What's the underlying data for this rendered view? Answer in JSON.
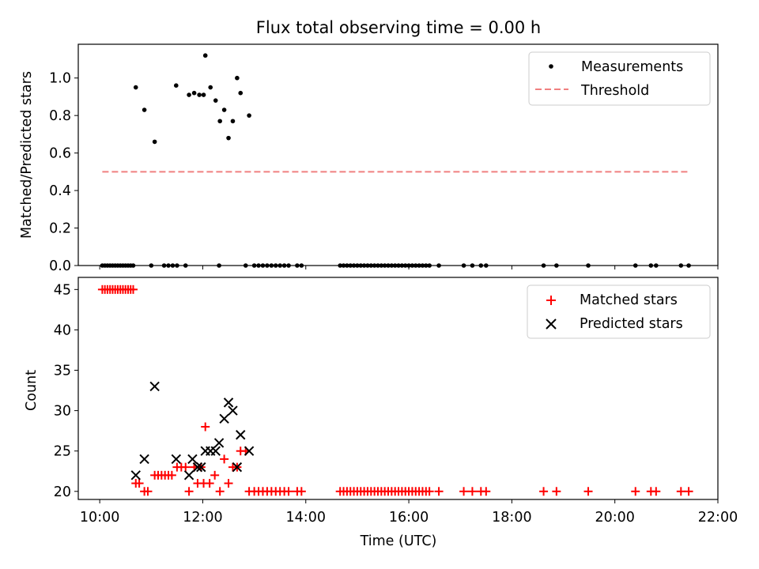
{
  "chart_data": [
    {
      "type": "scatter",
      "title": "Flux total observing time = 0.00 h",
      "xlabel": "",
      "ylabel": "Matched/Predicted stars",
      "xlim": [
        "09:35",
        "22:00"
      ],
      "ylim": [
        0,
        1.18
      ],
      "yticks": [
        "0.0",
        "0.2",
        "0.4",
        "0.6",
        "0.8",
        "1.0"
      ],
      "legend_position": "top-right",
      "series": [
        {
          "name": "Measurements",
          "marker": "dot",
          "color": "#000000",
          "points": [
            [
              "10:03",
              0
            ],
            [
              "10:06",
              0
            ],
            [
              "10:09",
              0
            ],
            [
              "10:12",
              0
            ],
            [
              "10:15",
              0
            ],
            [
              "10:18",
              0
            ],
            [
              "10:21",
              0
            ],
            [
              "10:24",
              0
            ],
            [
              "10:27",
              0
            ],
            [
              "10:30",
              0
            ],
            [
              "10:33",
              0
            ],
            [
              "10:36",
              0
            ],
            [
              "10:39",
              0
            ],
            [
              "10:42",
              0.95
            ],
            [
              "10:52",
              0.83
            ],
            [
              "11:00",
              0
            ],
            [
              "11:04",
              0.66
            ],
            [
              "11:15",
              0
            ],
            [
              "11:20",
              0
            ],
            [
              "11:25",
              0
            ],
            [
              "11:30",
              0
            ],
            [
              "11:29",
              0.96
            ],
            [
              "11:40",
              0
            ],
            [
              "11:44",
              0.91
            ],
            [
              "11:50",
              0.92
            ],
            [
              "11:56",
              0.91
            ],
            [
              "12:01",
              0.91
            ],
            [
              "12:03",
              1.12
            ],
            [
              "12:09",
              0.95
            ],
            [
              "12:15",
              0.88
            ],
            [
              "12:19",
              0
            ],
            [
              "12:20",
              0.77
            ],
            [
              "12:25",
              0.83
            ],
            [
              "12:30",
              0.68
            ],
            [
              "12:35",
              0.77
            ],
            [
              "12:40",
              1.0
            ],
            [
              "12:44",
              0.92
            ],
            [
              "12:54",
              0.8
            ],
            [
              "12:50",
              0
            ],
            [
              "13:00",
              0
            ],
            [
              "13:05",
              0
            ],
            [
              "13:10",
              0
            ],
            [
              "13:15",
              0
            ],
            [
              "13:20",
              0
            ],
            [
              "13:25",
              0
            ],
            [
              "13:30",
              0
            ],
            [
              "13:35",
              0
            ],
            [
              "13:40",
              0
            ],
            [
              "13:50",
              0
            ],
            [
              "13:55",
              0
            ],
            [
              "14:40",
              0
            ],
            [
              "14:44",
              0
            ],
            [
              "14:48",
              0
            ],
            [
              "14:52",
              0
            ],
            [
              "14:56",
              0
            ],
            [
              "15:00",
              0
            ],
            [
              "15:04",
              0
            ],
            [
              "15:08",
              0
            ],
            [
              "15:12",
              0
            ],
            [
              "15:16",
              0
            ],
            [
              "15:20",
              0
            ],
            [
              "15:24",
              0
            ],
            [
              "15:28",
              0
            ],
            [
              "15:32",
              0
            ],
            [
              "15:36",
              0
            ],
            [
              "15:40",
              0
            ],
            [
              "15:44",
              0
            ],
            [
              "15:48",
              0
            ],
            [
              "15:52",
              0
            ],
            [
              "15:56",
              0
            ],
            [
              "16:00",
              0
            ],
            [
              "16:04",
              0
            ],
            [
              "16:08",
              0
            ],
            [
              "16:12",
              0
            ],
            [
              "16:16",
              0
            ],
            [
              "16:20",
              0
            ],
            [
              "16:24",
              0
            ],
            [
              "16:35",
              0
            ],
            [
              "17:04",
              0
            ],
            [
              "17:14",
              0
            ],
            [
              "17:24",
              0
            ],
            [
              "17:30",
              0
            ],
            [
              "18:37",
              0
            ],
            [
              "18:52",
              0
            ],
            [
              "19:29",
              0
            ],
            [
              "20:24",
              0
            ],
            [
              "20:42",
              0
            ],
            [
              "20:48",
              0
            ],
            [
              "21:17",
              0
            ],
            [
              "21:26",
              0
            ]
          ]
        },
        {
          "name": "Threshold",
          "type": "line",
          "style": "dashed",
          "color": "#f08080",
          "points": [
            [
              "10:03",
              0.5
            ],
            [
              "21:26",
              0.5
            ]
          ]
        }
      ]
    },
    {
      "type": "scatter",
      "title": "",
      "xlabel": "Time (UTC)",
      "ylabel": "Count",
      "xlim": [
        "09:35",
        "22:00"
      ],
      "ylim": [
        19,
        46.5
      ],
      "yticks": [
        "20",
        "25",
        "30",
        "35",
        "40",
        "45"
      ],
      "xticks": [
        "10:00",
        "12:00",
        "14:00",
        "16:00",
        "18:00",
        "20:00",
        "22:00"
      ],
      "legend_position": "top-right",
      "series": [
        {
          "name": "Matched stars",
          "marker": "plus",
          "color": "#ff0000",
          "points": [
            [
              "10:03",
              45
            ],
            [
              "10:06",
              45
            ],
            [
              "10:09",
              45
            ],
            [
              "10:12",
              45
            ],
            [
              "10:15",
              45
            ],
            [
              "10:18",
              45
            ],
            [
              "10:21",
              45
            ],
            [
              "10:24",
              45
            ],
            [
              "10:27",
              45
            ],
            [
              "10:30",
              45
            ],
            [
              "10:33",
              45
            ],
            [
              "10:36",
              45
            ],
            [
              "10:39",
              45
            ],
            [
              "10:42",
              21
            ],
            [
              "10:46",
              21
            ],
            [
              "10:52",
              20
            ],
            [
              "10:56",
              20
            ],
            [
              "11:04",
              22
            ],
            [
              "11:08",
              22
            ],
            [
              "11:12",
              22
            ],
            [
              "11:16",
              22
            ],
            [
              "11:20",
              22
            ],
            [
              "11:24",
              22
            ],
            [
              "11:30",
              23
            ],
            [
              "11:35",
              23
            ],
            [
              "11:40",
              23
            ],
            [
              "11:44",
              20
            ],
            [
              "11:50",
              23
            ],
            [
              "11:54",
              21
            ],
            [
              "11:58",
              23
            ],
            [
              "12:01",
              21
            ],
            [
              "12:03",
              28
            ],
            [
              "12:08",
              21
            ],
            [
              "12:14",
              22
            ],
            [
              "12:20",
              20
            ],
            [
              "12:25",
              24
            ],
            [
              "12:30",
              21
            ],
            [
              "12:35",
              23
            ],
            [
              "12:40",
              23
            ],
            [
              "12:44",
              25
            ],
            [
              "12:50",
              25
            ],
            [
              "12:54",
              20
            ],
            [
              "13:00",
              20
            ],
            [
              "13:05",
              20
            ],
            [
              "13:10",
              20
            ],
            [
              "13:15",
              20
            ],
            [
              "13:20",
              20
            ],
            [
              "13:25",
              20
            ],
            [
              "13:30",
              20
            ],
            [
              "13:35",
              20
            ],
            [
              "13:40",
              20
            ],
            [
              "13:50",
              20
            ],
            [
              "13:55",
              20
            ],
            [
              "14:40",
              20
            ],
            [
              "14:44",
              20
            ],
            [
              "14:48",
              20
            ],
            [
              "14:52",
              20
            ],
            [
              "14:56",
              20
            ],
            [
              "15:00",
              20
            ],
            [
              "15:04",
              20
            ],
            [
              "15:08",
              20
            ],
            [
              "15:12",
              20
            ],
            [
              "15:16",
              20
            ],
            [
              "15:20",
              20
            ],
            [
              "15:24",
              20
            ],
            [
              "15:28",
              20
            ],
            [
              "15:32",
              20
            ],
            [
              "15:36",
              20
            ],
            [
              "15:40",
              20
            ],
            [
              "15:44",
              20
            ],
            [
              "15:48",
              20
            ],
            [
              "15:52",
              20
            ],
            [
              "15:56",
              20
            ],
            [
              "16:00",
              20
            ],
            [
              "16:04",
              20
            ],
            [
              "16:08",
              20
            ],
            [
              "16:12",
              20
            ],
            [
              "16:16",
              20
            ],
            [
              "16:20",
              20
            ],
            [
              "16:24",
              20
            ],
            [
              "16:35",
              20
            ],
            [
              "17:04",
              20
            ],
            [
              "17:14",
              20
            ],
            [
              "17:24",
              20
            ],
            [
              "17:30",
              20
            ],
            [
              "18:37",
              20
            ],
            [
              "18:52",
              20
            ],
            [
              "19:29",
              20
            ],
            [
              "20:24",
              20
            ],
            [
              "20:42",
              20
            ],
            [
              "20:48",
              20
            ],
            [
              "21:17",
              20
            ],
            [
              "21:26",
              20
            ]
          ]
        },
        {
          "name": "Predicted stars",
          "marker": "x",
          "color": "#000000",
          "points": [
            [
              "10:42",
              22
            ],
            [
              "10:52",
              24
            ],
            [
              "11:04",
              33
            ],
            [
              "11:29",
              24
            ],
            [
              "11:44",
              22
            ],
            [
              "11:48",
              24
            ],
            [
              "11:54",
              23
            ],
            [
              "11:58",
              23
            ],
            [
              "12:03",
              25
            ],
            [
              "12:09",
              25
            ],
            [
              "12:15",
              25
            ],
            [
              "12:19",
              26
            ],
            [
              "12:25",
              29
            ],
            [
              "12:30",
              31
            ],
            [
              "12:35",
              30
            ],
            [
              "12:40",
              23
            ],
            [
              "12:44",
              27
            ],
            [
              "12:54",
              25
            ]
          ]
        }
      ]
    }
  ]
}
